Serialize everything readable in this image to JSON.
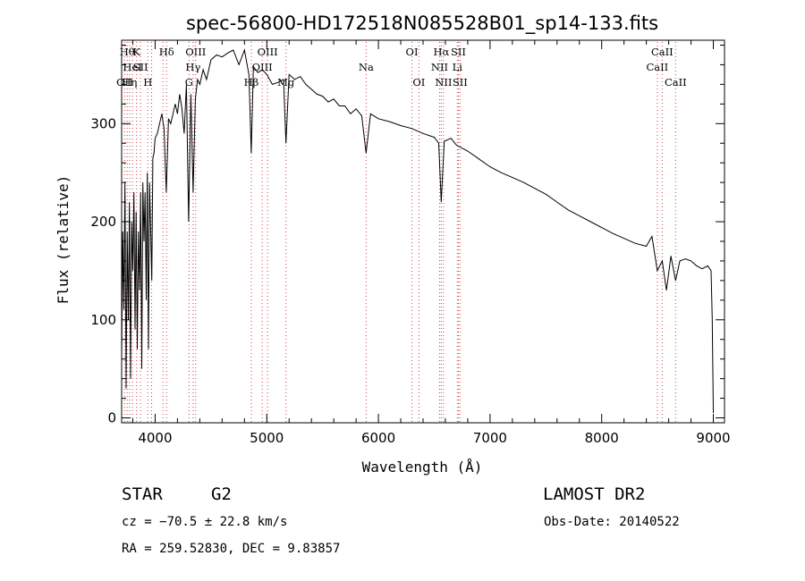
{
  "chart_data": {
    "type": "line",
    "title": "spec-56800-HD172518N085528B01_sp14-133.fits",
    "xlabel": "Wavelength (Å)",
    "ylabel": "Flux (relative)",
    "xlim": [
      3700,
      9100
    ],
    "ylim": [
      -5,
      385
    ],
    "xticks": [
      4000,
      5000,
      6000,
      7000,
      8000,
      9000
    ],
    "yticks": [
      0,
      100,
      200,
      300
    ],
    "grid": false,
    "series": [
      {
        "values_x": [
          3700,
          3710,
          3720,
          3730,
          3740,
          3750,
          3760,
          3770,
          3780,
          3790,
          3800,
          3810,
          3820,
          3830,
          3840,
          3850,
          3860,
          3870,
          3880,
          3890,
          3900,
          3910,
          3920,
          3930,
          3940,
          3950,
          3960,
          3970,
          3980,
          3990,
          4000,
          4020,
          4040,
          4060,
          4080,
          4100,
          4120,
          4140,
          4160,
          4180,
          4200,
          4220,
          4240,
          4260,
          4280,
          4300,
          4320,
          4340,
          4360,
          4380,
          4400,
          4430,
          4460,
          4500,
          4550,
          4600,
          4650,
          4700,
          4750,
          4800,
          4840,
          4861,
          4880,
          4920,
          4960,
          5000,
          5050,
          5100,
          5150,
          5172,
          5200,
          5250,
          5300,
          5350,
          5400,
          5450,
          5500,
          5550,
          5600,
          5650,
          5700,
          5750,
          5800,
          5850,
          5890,
          5930,
          6000,
          6100,
          6200,
          6300,
          6400,
          6500,
          6540,
          6563,
          6590,
          6650,
          6700,
          6800,
          6900,
          7000,
          7100,
          7200,
          7300,
          7400,
          7500,
          7600,
          7700,
          7800,
          7900,
          8000,
          8100,
          8200,
          8300,
          8400,
          8450,
          8498,
          8542,
          8580,
          8620,
          8662,
          8700,
          8750,
          8800,
          8850,
          8900,
          8950,
          8980,
          8990,
          9000
        ],
        "values_y": [
          60,
          190,
          110,
          240,
          30,
          190,
          100,
          220,
          40,
          200,
          150,
          230,
          90,
          210,
          70,
          190,
          130,
          230,
          50,
          240,
          180,
          230,
          120,
          250,
          70,
          240,
          190,
          140,
          265,
          270,
          285,
          290,
          300,
          310,
          295,
          230,
          305,
          300,
          310,
          320,
          310,
          330,
          315,
          290,
          340,
          200,
          330,
          230,
          325,
          345,
          340,
          355,
          345,
          365,
          370,
          368,
          372,
          375,
          360,
          375,
          350,
          270,
          358,
          352,
          355,
          350,
          340,
          342,
          345,
          280,
          350,
          345,
          348,
          340,
          335,
          330,
          328,
          322,
          325,
          318,
          318,
          310,
          315,
          308,
          270,
          310,
          305,
          302,
          298,
          295,
          290,
          286,
          280,
          220,
          282,
          285,
          278,
          272,
          264,
          256,
          250,
          245,
          240,
          234,
          228,
          220,
          212,
          206,
          200,
          194,
          188,
          183,
          178,
          175,
          185,
          150,
          160,
          130,
          165,
          140,
          160,
          162,
          160,
          155,
          152,
          155,
          150,
          100,
          5
        ]
      }
    ],
    "lines": [
      {
        "w": 3727,
        "labels": [
          {
            "t": "OII",
            "r": 3
          }
        ]
      },
      {
        "w": 3750,
        "labels": [
          {
            "t": "Hθ",
            "r": 1
          }
        ]
      },
      {
        "w": 3771,
        "labels": [
          {
            "t": "Hη",
            "r": 3
          }
        ]
      },
      {
        "w": 3797,
        "labels": [
          {
            "t": "HeI",
            "r": 2
          }
        ]
      },
      {
        "w": 3834,
        "labels": [
          {
            "t": "K",
            "r": 1
          }
        ]
      },
      {
        "w": 3869,
        "labels": [
          {
            "t": "SII",
            "r": 2
          }
        ]
      },
      {
        "w": 3934,
        "labels": [
          {
            "t": "H",
            "r": 3
          }
        ]
      },
      {
        "w": 3968,
        "labels": []
      },
      {
        "w": 4070,
        "labels": []
      },
      {
        "w": 4102,
        "labels": [
          {
            "t": "Hδ",
            "r": 1
          }
        ]
      },
      {
        "w": 4304,
        "labels": [
          {
            "t": "G",
            "r": 3
          }
        ]
      },
      {
        "w": 4340,
        "labels": [
          {
            "t": "Hγ",
            "r": 2
          }
        ]
      },
      {
        "w": 4363,
        "labels": [
          {
            "t": "OIII",
            "r": 1
          }
        ]
      },
      {
        "w": 4861,
        "labels": [
          {
            "t": "Hβ",
            "r": 3
          }
        ]
      },
      {
        "w": 4959,
        "labels": [
          {
            "t": "OIII",
            "r": 2
          }
        ]
      },
      {
        "w": 5007,
        "labels": [
          {
            "t": "OIII",
            "r": 1
          }
        ]
      },
      {
        "w": 5172,
        "labels": [
          {
            "t": "Mg",
            "r": 3
          }
        ]
      },
      {
        "w": 5890,
        "labels": [
          {
            "t": "Na",
            "r": 2
          }
        ]
      },
      {
        "w": 6300,
        "labels": [
          {
            "t": "OI",
            "r": 1
          }
        ]
      },
      {
        "w": 6363,
        "labels": [
          {
            "t": "OI",
            "r": 3
          }
        ]
      },
      {
        "w": 6548,
        "labels": [
          {
            "t": "NII",
            "r": 2
          }
        ]
      },
      {
        "w": 6563,
        "labels": [
          {
            "t": "Hα",
            "r": 1
          }
        ]
      },
      {
        "w": 6583,
        "labels": [
          {
            "t": "NII",
            "r": 3
          }
        ]
      },
      {
        "w": 6707,
        "labels": [
          {
            "t": "Li",
            "r": 2
          }
        ]
      },
      {
        "w": 6716,
        "labels": [
          {
            "t": "SII",
            "r": 1
          }
        ]
      },
      {
        "w": 6731,
        "labels": [
          {
            "t": "SII",
            "r": 3
          }
        ]
      },
      {
        "w": 8498,
        "labels": [
          {
            "t": "CaII",
            "r": 2
          }
        ]
      },
      {
        "w": 8542,
        "labels": [
          {
            "t": "CaII",
            "r": 1
          }
        ]
      },
      {
        "w": 8662,
        "labels": [
          {
            "t": "CaII",
            "r": 3
          }
        ]
      }
    ]
  },
  "info": {
    "object_class": "STAR",
    "subclass": "G2",
    "survey": "LAMOST DR2",
    "cz": "cz = −70.5 ± 22.8 km/s",
    "obs_date": "Obs-Date: 20140522",
    "coords": "RA = 259.52830, DEC =   9.83857"
  },
  "colors": {
    "spectrum": "#000000",
    "line_markers": "#d04040",
    "axes": "#000000"
  }
}
